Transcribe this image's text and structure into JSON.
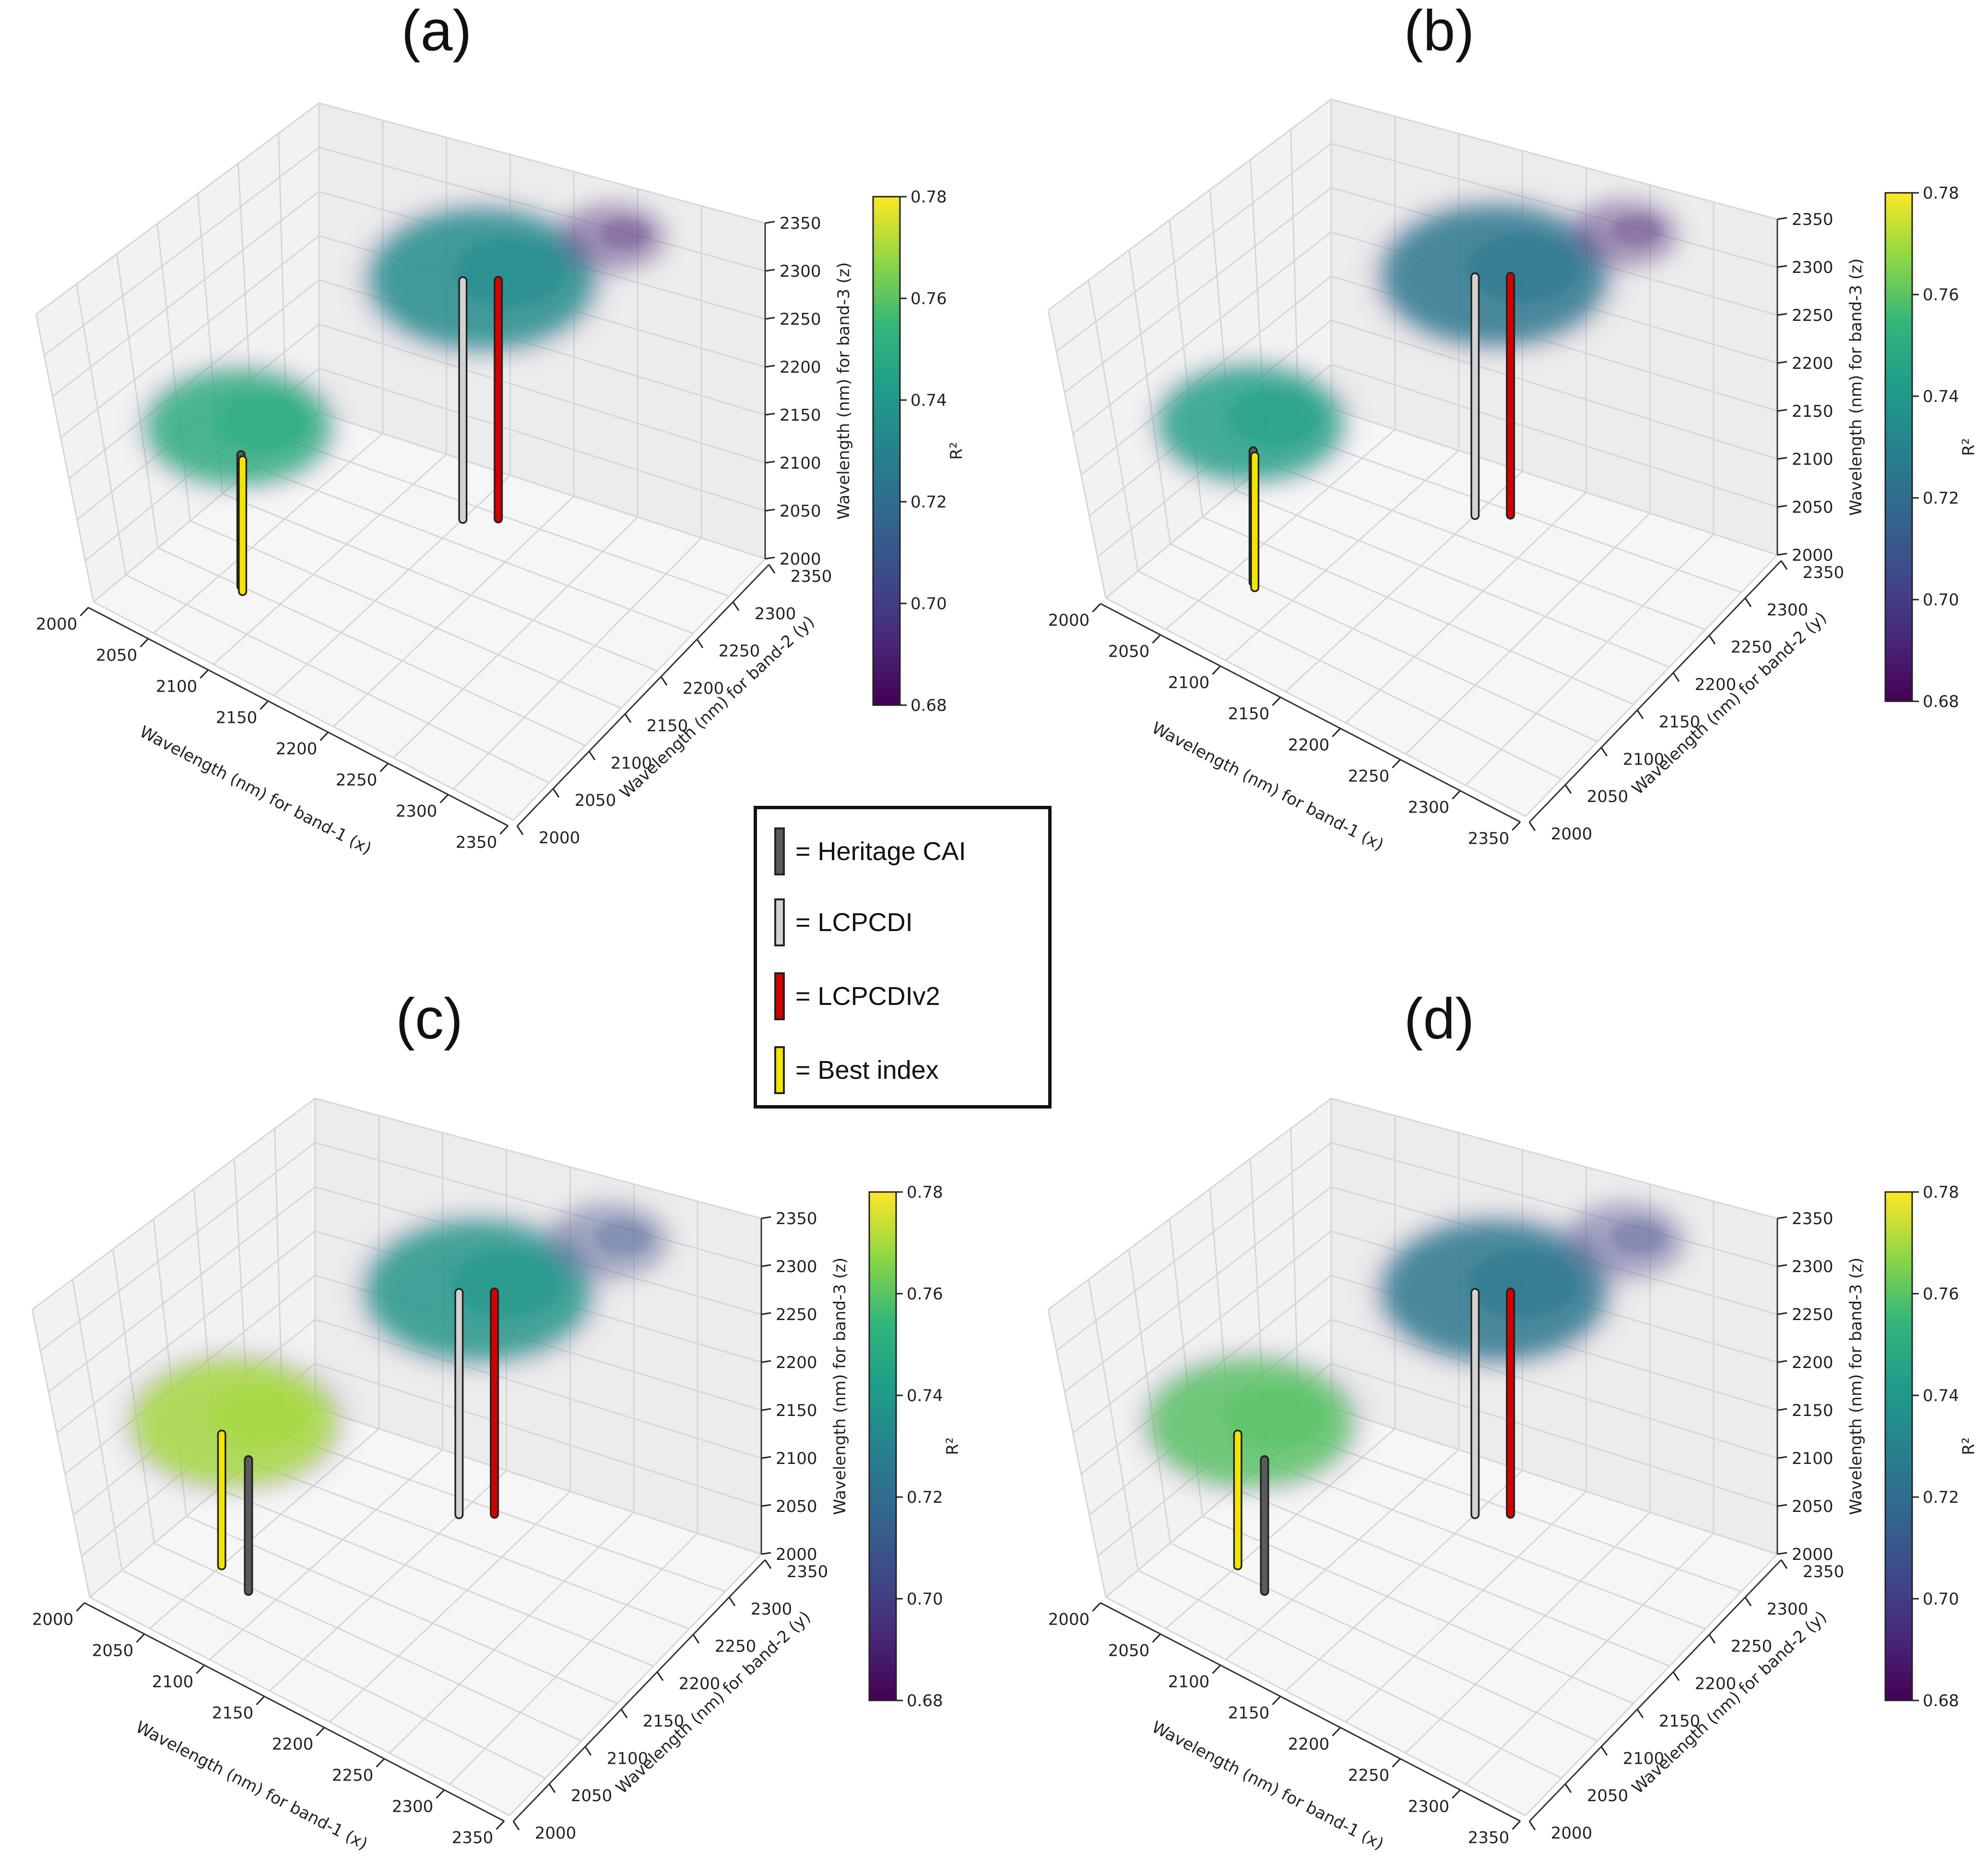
{
  "figure": {
    "legend": {
      "items": [
        {
          "label": "= Heritage CAI",
          "color": "#5a5a5a"
        },
        {
          "label": "= LCPCDI",
          "color": "#d2d2d2"
        },
        {
          "label": "= LCPCDIv2",
          "color": "#d40000"
        },
        {
          "label": "= Best index",
          "color": "#f2e600"
        }
      ]
    },
    "colorbar": {
      "label": "R²",
      "range": [
        0.68,
        0.78
      ],
      "ticks": [
        "0.68",
        "0.70",
        "0.72",
        "0.74",
        "0.76",
        "0.78"
      ],
      "colormap": "viridis"
    }
  },
  "chart_data": [
    {
      "panel": "(a)",
      "type": "scatter3d",
      "xlabel": "Wavelength (nm) for band-1 (x)",
      "ylabel": "Wavelength (nm) for band-2 (y)",
      "zlabel": "Wavelength (nm) for band-3 (z)",
      "x_ticks": [
        "2000",
        "2050",
        "2100",
        "2150",
        "2200",
        "2250",
        "2300",
        "2350"
      ],
      "y_ticks": [
        "2000",
        "2050",
        "2100",
        "2150",
        "2200",
        "2250",
        "2300",
        "2350"
      ],
      "z_ticks": [
        "2000",
        "2050",
        "2100",
        "2150",
        "2200",
        "2250",
        "2300",
        "2350"
      ],
      "xlim": [
        2000,
        2350
      ],
      "ylim": [
        2000,
        2350
      ],
      "zlim": [
        2000,
        2350
      ],
      "clusters": [
        {
          "x": 2050,
          "y": 2130,
          "z": 2160,
          "spread": 45,
          "r2": 0.75
        },
        {
          "x": 2160,
          "y": 2290,
          "z": 2290,
          "spread": 55,
          "r2": 0.735
        },
        {
          "x": 2230,
          "y": 2350,
          "z": 2330,
          "spread": 25,
          "r2": 0.69
        }
      ],
      "indices": [
        {
          "name": "= Heritage CAI",
          "x": 2068,
          "y": 2100
        },
        {
          "name": "= LCPCDI",
          "x": 2150,
          "y": 2280
        },
        {
          "name": "= LCPCDIv2",
          "x": 2170,
          "y": 2295
        },
        {
          "name": "= Best index",
          "x": 2072,
          "y": 2095
        }
      ]
    },
    {
      "panel": "(b)",
      "type": "scatter3d",
      "xlabel": "Wavelength (nm) for band-1 (x)",
      "ylabel": "Wavelength (nm) for band-2 (y)",
      "zlabel": "Wavelength (nm) for band-3 (z)",
      "x_ticks": [
        "2000",
        "2050",
        "2100",
        "2150",
        "2200",
        "2250",
        "2300",
        "2350"
      ],
      "y_ticks": [
        "2000",
        "2050",
        "2100",
        "2150",
        "2200",
        "2250",
        "2300",
        "2350"
      ],
      "z_ticks": [
        "2000",
        "2050",
        "2100",
        "2150",
        "2200",
        "2250",
        "2300",
        "2350"
      ],
      "xlim": [
        2000,
        2350
      ],
      "ylim": [
        2000,
        2350
      ],
      "zlim": [
        2000,
        2350
      ],
      "clusters": [
        {
          "x": 2050,
          "y": 2130,
          "z": 2160,
          "spread": 45,
          "r2": 0.745
        },
        {
          "x": 2160,
          "y": 2290,
          "z": 2290,
          "spread": 55,
          "r2": 0.725
        },
        {
          "x": 2230,
          "y": 2350,
          "z": 2330,
          "spread": 25,
          "r2": 0.69
        }
      ],
      "indices": [
        {
          "name": "= Heritage CAI",
          "x": 2068,
          "y": 2100
        },
        {
          "name": "= LCPCDI",
          "x": 2150,
          "y": 2280
        },
        {
          "name": "= LCPCDIv2",
          "x": 2170,
          "y": 2295
        },
        {
          "name": "= Best index",
          "x": 2072,
          "y": 2095
        }
      ]
    },
    {
      "panel": "(c)",
      "type": "scatter3d",
      "xlabel": "Wavelength (nm) for band-1 (x)",
      "ylabel": "Wavelength (nm) for band-2 (y)",
      "zlabel": "Wavelength (nm) for band-3 (z)",
      "x_ticks": [
        "2000",
        "2050",
        "2100",
        "2150",
        "2200",
        "2250",
        "2300",
        "2350"
      ],
      "y_ticks": [
        "2000",
        "2050",
        "2100",
        "2150",
        "2200",
        "2250",
        "2300",
        "2350"
      ],
      "z_ticks": [
        "2000",
        "2050",
        "2100",
        "2150",
        "2200",
        "2250",
        "2300",
        "2350"
      ],
      "xlim": [
        2000,
        2350
      ],
      "ylim": [
        2000,
        2350
      ],
      "zlim": [
        2000,
        2350
      ],
      "clusters": [
        {
          "x": 2050,
          "y": 2130,
          "z": 2160,
          "spread": 50,
          "r2": 0.77
        },
        {
          "x": 2160,
          "y": 2290,
          "z": 2270,
          "spread": 55,
          "r2": 0.74
        },
        {
          "x": 2230,
          "y": 2350,
          "z": 2320,
          "spread": 28,
          "r2": 0.71
        }
      ],
      "indices": [
        {
          "name": "= Heritage CAI",
          "x": 2080,
          "y": 2095
        },
        {
          "name": "= LCPCDI",
          "x": 2150,
          "y": 2280
        },
        {
          "name": "= LCPCDIv2",
          "x": 2170,
          "y": 2295
        },
        {
          "name": "= Best index",
          "x": 2050,
          "y": 2110
        }
      ]
    },
    {
      "panel": "(d)",
      "type": "scatter3d",
      "xlabel": "Wavelength (nm) for band-1 (x)",
      "ylabel": "Wavelength (nm) for band-2 (y)",
      "zlabel": "Wavelength (nm) for band-3 (z)",
      "x_ticks": [
        "2000",
        "2050",
        "2100",
        "2150",
        "2200",
        "2250",
        "2300",
        "2350"
      ],
      "y_ticks": [
        "2000",
        "2050",
        "2100",
        "2150",
        "2200",
        "2250",
        "2300",
        "2350"
      ],
      "z_ticks": [
        "2000",
        "2050",
        "2100",
        "2150",
        "2200",
        "2250",
        "2300",
        "2350"
      ],
      "xlim": [
        2000,
        2350
      ],
      "ylim": [
        2000,
        2350
      ],
      "zlim": [
        2000,
        2350
      ],
      "clusters": [
        {
          "x": 2050,
          "y": 2130,
          "z": 2160,
          "spread": 50,
          "r2": 0.76
        },
        {
          "x": 2160,
          "y": 2290,
          "z": 2270,
          "spread": 55,
          "r2": 0.725
        },
        {
          "x": 2230,
          "y": 2350,
          "z": 2320,
          "spread": 28,
          "r2": 0.705
        }
      ],
      "indices": [
        {
          "name": "= Heritage CAI",
          "x": 2080,
          "y": 2095
        },
        {
          "name": "= LCPCDI",
          "x": 2150,
          "y": 2280
        },
        {
          "name": "= LCPCDIv2",
          "x": 2170,
          "y": 2295
        },
        {
          "name": "= Best index",
          "x": 2050,
          "y": 2110
        }
      ]
    }
  ]
}
